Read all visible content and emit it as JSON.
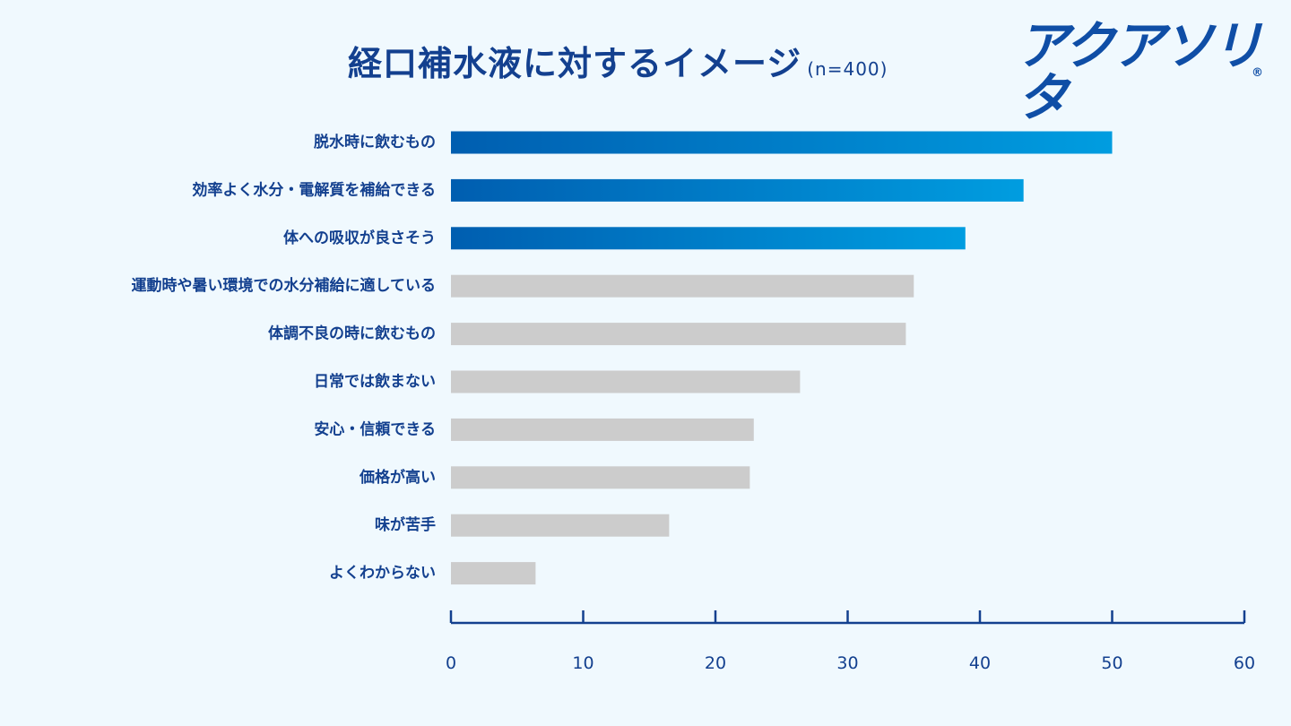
{
  "header": {
    "title": "経口補水液に対するイメージ",
    "sample": "(n=400)",
    "brand_logo": "アクアソリタ",
    "brand_reg": "®"
  },
  "colors": {
    "highlight_start": "#005eb0",
    "highlight_end": "#009de0",
    "normal": "#cccccc",
    "axis": "#13408f",
    "text": "#13408f",
    "background": "#f0f9fe"
  },
  "chart_data": {
    "type": "bar",
    "orientation": "horizontal",
    "title": "経口補水液に対するイメージ",
    "xlabel": "",
    "ylabel": "",
    "xlim": [
      0,
      60
    ],
    "x_ticks": [
      0,
      10,
      20,
      30,
      40,
      50,
      60
    ],
    "grid": false,
    "legend": "none",
    "categories": [
      "脱水時に飲むもの",
      "効率よく水分・電解質を補給できる",
      "体への吸収が良さそう",
      "運動時や暑い環境での水分補給に適している",
      "体調不良の時に飲むもの",
      "日常では飲まない",
      "安心・信頼できる",
      "価格が高い",
      "味が苦手",
      "よくわからない"
    ],
    "values": [
      50,
      43.3,
      38.9,
      35,
      34.4,
      26.4,
      22.9,
      22.6,
      16.5,
      6.4
    ],
    "highlighted": [
      true,
      true,
      true,
      false,
      false,
      false,
      false,
      false,
      false,
      false
    ]
  }
}
